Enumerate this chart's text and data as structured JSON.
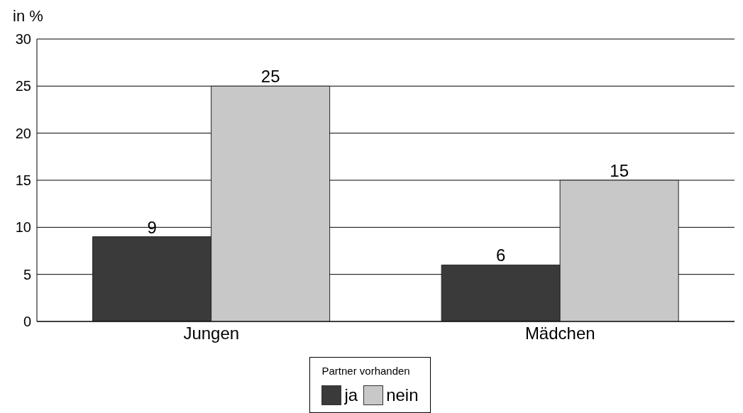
{
  "chart_data": {
    "type": "bar",
    "ylabel": "in %",
    "categories": [
      "Jungen",
      "Mädchen"
    ],
    "series": [
      {
        "name": "ja",
        "color": "#3a3a3a",
        "values": [
          9,
          6
        ]
      },
      {
        "name": "nein",
        "color": "#c8c8c8",
        "values": [
          25,
          15
        ]
      }
    ],
    "ylim": [
      0,
      30
    ],
    "yticks": [
      0,
      5,
      10,
      15,
      20,
      25,
      30
    ],
    "grid": "y",
    "data_labels": true,
    "legend": "bottom",
    "legend_title": "Partner vorhanden"
  }
}
